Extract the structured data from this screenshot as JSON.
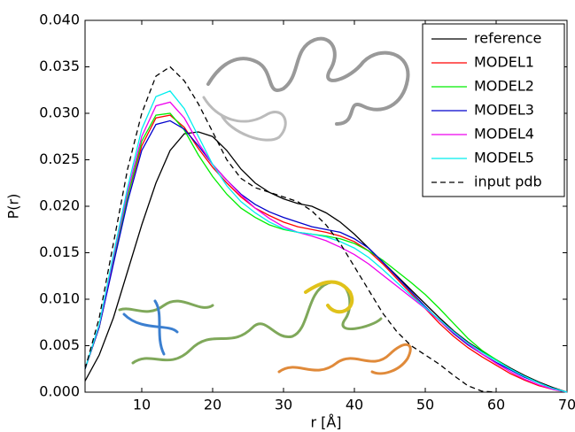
{
  "chart_data": {
    "type": "line",
    "xlabel": "r [Å]",
    "ylabel": "P(r)",
    "x": [
      2,
      4,
      6,
      8,
      10,
      12,
      14,
      16,
      18,
      20,
      22,
      24,
      26,
      28,
      30,
      32,
      34,
      36,
      38,
      40,
      42,
      44,
      46,
      48,
      50,
      52,
      54,
      56,
      58,
      60,
      62,
      64,
      66,
      68,
      70
    ],
    "series": [
      {
        "name": "reference",
        "color": "#000000",
        "linestyle": "solid",
        "values": [
          0.0012,
          0.004,
          0.008,
          0.013,
          0.018,
          0.0225,
          0.026,
          0.0278,
          0.028,
          0.0275,
          0.026,
          0.024,
          0.0225,
          0.0215,
          0.0208,
          0.0203,
          0.02,
          0.0193,
          0.0183,
          0.017,
          0.0155,
          0.014,
          0.0125,
          0.011,
          0.0095,
          0.008,
          0.0066,
          0.0054,
          0.0044,
          0.0035,
          0.0026,
          0.0018,
          0.0011,
          0.0005,
          0
        ]
      },
      {
        "name": "MODEL1",
        "color": "#ff0000",
        "linestyle": "solid",
        "values": [
          0.0025,
          0.007,
          0.014,
          0.021,
          0.0265,
          0.0295,
          0.0298,
          0.0285,
          0.0262,
          0.0242,
          0.0225,
          0.021,
          0.0198,
          0.019,
          0.0183,
          0.0178,
          0.0175,
          0.0172,
          0.0168,
          0.0162,
          0.0152,
          0.0138,
          0.0122,
          0.0106,
          0.009,
          0.0074,
          0.006,
          0.0048,
          0.0038,
          0.0029,
          0.002,
          0.0013,
          0.0007,
          0.0003,
          0
        ]
      },
      {
        "name": "MODEL2",
        "color": "#00ee00",
        "linestyle": "solid",
        "values": [
          0.0025,
          0.007,
          0.014,
          0.021,
          0.027,
          0.0298,
          0.03,
          0.0282,
          0.0255,
          0.0232,
          0.0213,
          0.0198,
          0.0188,
          0.018,
          0.0175,
          0.0172,
          0.017,
          0.0168,
          0.0165,
          0.016,
          0.0152,
          0.0142,
          0.013,
          0.0118,
          0.0105,
          0.009,
          0.0074,
          0.0058,
          0.0045,
          0.0035,
          0.0025,
          0.0017,
          0.001,
          0.0004,
          0
        ]
      },
      {
        "name": "MODEL3",
        "color": "#0000cc",
        "linestyle": "solid",
        "values": [
          0.0025,
          0.007,
          0.0138,
          0.0205,
          0.026,
          0.0288,
          0.0292,
          0.0283,
          0.0265,
          0.0245,
          0.0228,
          0.0213,
          0.0202,
          0.0194,
          0.0188,
          0.0183,
          0.0178,
          0.0175,
          0.0172,
          0.0165,
          0.0155,
          0.014,
          0.0124,
          0.0108,
          0.0092,
          0.0077,
          0.0063,
          0.0051,
          0.0041,
          0.0032,
          0.0024,
          0.0016,
          0.001,
          0.0004,
          0
        ]
      },
      {
        "name": "MODEL4",
        "color": "#ee00ee",
        "linestyle": "solid",
        "values": [
          0.0025,
          0.0072,
          0.0145,
          0.0215,
          0.0275,
          0.0308,
          0.0312,
          0.0295,
          0.0268,
          0.0245,
          0.0228,
          0.0212,
          0.0198,
          0.0187,
          0.0178,
          0.0172,
          0.0168,
          0.0163,
          0.0156,
          0.0148,
          0.0138,
          0.0126,
          0.0114,
          0.0102,
          0.009,
          0.0077,
          0.0064,
          0.0052,
          0.0041,
          0.0031,
          0.0022,
          0.0014,
          0.0008,
          0.0003,
          0
        ]
      },
      {
        "name": "MODEL5",
        "color": "#00eeee",
        "linestyle": "solid",
        "values": [
          0.0025,
          0.0073,
          0.0148,
          0.022,
          0.0283,
          0.0318,
          0.0324,
          0.0305,
          0.0275,
          0.0245,
          0.0222,
          0.0205,
          0.0193,
          0.0183,
          0.0176,
          0.0172,
          0.017,
          0.0167,
          0.0162,
          0.0155,
          0.0145,
          0.0132,
          0.0118,
          0.0104,
          0.0091,
          0.0078,
          0.0065,
          0.0053,
          0.0043,
          0.0034,
          0.0025,
          0.0017,
          0.001,
          0.0004,
          0
        ]
      },
      {
        "name": "input pdb",
        "color": "#000000",
        "linestyle": "dashed",
        "values": [
          0.0025,
          0.008,
          0.016,
          0.024,
          0.03,
          0.034,
          0.035,
          0.0335,
          0.031,
          0.028,
          0.025,
          0.023,
          0.022,
          0.0215,
          0.021,
          0.0205,
          0.0195,
          0.018,
          0.016,
          0.0135,
          0.011,
          0.0085,
          0.0065,
          0.005,
          0.004,
          0.003,
          0.0018,
          0.0007,
          0.0001,
          0,
          null,
          null,
          null,
          null,
          null
        ]
      }
    ],
    "xlim": [
      2,
      70
    ],
    "xticks": [
      10,
      20,
      30,
      40,
      50,
      60,
      70
    ],
    "ylim": [
      0,
      0.04
    ],
    "yticks": [
      {
        "value": 0,
        "label": "0.000"
      },
      {
        "value": 0.005,
        "label": "0.005"
      },
      {
        "value": 0.01,
        "label": "0.010"
      },
      {
        "value": 0.015,
        "label": "0.015"
      },
      {
        "value": 0.02,
        "label": "0.020"
      },
      {
        "value": 0.025,
        "label": "0.025"
      },
      {
        "value": 0.03,
        "label": "0.030"
      },
      {
        "value": 0.035,
        "label": "0.035"
      },
      {
        "value": 0.04,
        "label": "0.040"
      }
    ],
    "grid": false,
    "legend": "upper right"
  }
}
